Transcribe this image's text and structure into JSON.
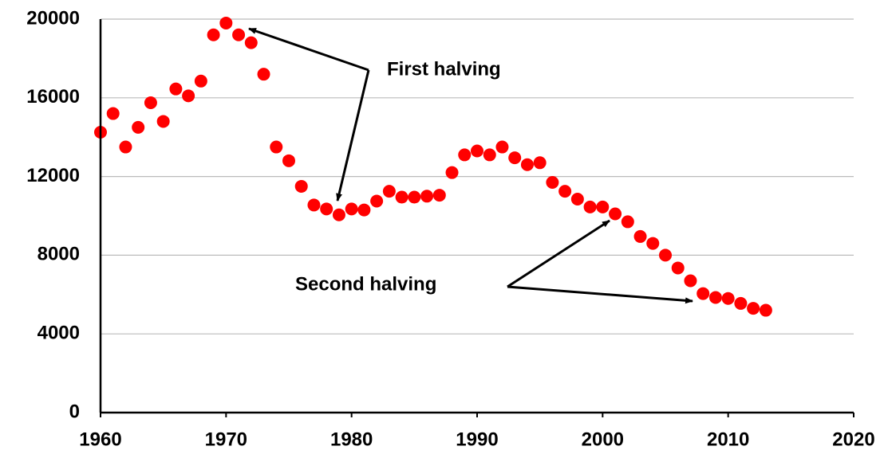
{
  "chart_data": {
    "type": "scatter",
    "x": [
      1960,
      1961,
      1962,
      1963,
      1964,
      1965,
      1966,
      1967,
      1968,
      1969,
      1970,
      1971,
      1972,
      1973,
      1974,
      1975,
      1976,
      1977,
      1978,
      1979,
      1980,
      1981,
      1982,
      1983,
      1984,
      1985,
      1986,
      1987,
      1988,
      1989,
      1990,
      1991,
      1992,
      1993,
      1994,
      1995,
      1996,
      1997,
      1998,
      1999,
      2000,
      2001,
      2002,
      2003,
      2004,
      2005,
      2006,
      2007,
      2008,
      2009,
      2010,
      2011,
      2012,
      2013
    ],
    "values": [
      14250,
      15200,
      13500,
      14500,
      15750,
      14800,
      16450,
      16100,
      16850,
      19200,
      19800,
      19200,
      18800,
      17200,
      13500,
      12800,
      11500,
      10550,
      10350,
      10050,
      10350,
      10300,
      10750,
      11250,
      10950,
      10950,
      11000,
      11050,
      12200,
      13100,
      13300,
      13100,
      13500,
      12950,
      12600,
      12700,
      11700,
      11250,
      10850,
      10450,
      10450,
      10100,
      9700,
      8950,
      8600,
      8000,
      7350,
      6700,
      6050,
      5850,
      5800,
      5550,
      5300,
      5200
    ],
    "color": "#ff0000",
    "xlim": [
      1960,
      2020
    ],
    "xticks": [
      1960,
      1970,
      1980,
      1990,
      2000,
      2010,
      2020
    ],
    "ylim": [
      0,
      20000
    ],
    "yticks": [
      0,
      4000,
      8000,
      12000,
      16000,
      20000
    ],
    "grid": true,
    "annotations": [
      "First halving",
      "Second halving"
    ]
  }
}
